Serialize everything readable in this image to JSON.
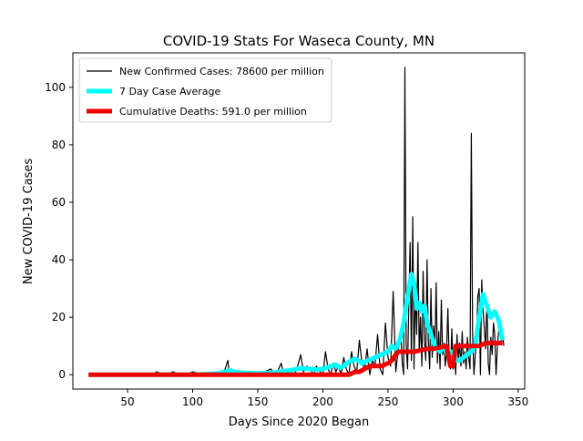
{
  "colors": {
    "cases": "#000000",
    "average": "#00ffff",
    "deaths": "#ee0000",
    "axis": "#000000",
    "background": "#ffffff"
  },
  "chart_data": {
    "type": "line",
    "title": "COVID-19 Stats For Waseca County, MN",
    "xlabel": "Days Since 2020 Began",
    "ylabel": "New COVID-19 Cases",
    "xlim": [
      8,
      355
    ],
    "ylim": [
      -5,
      112
    ],
    "xticks": [
      50,
      100,
      150,
      200,
      250,
      300,
      350
    ],
    "yticks": [
      0,
      20,
      40,
      60,
      80,
      100
    ],
    "grid": false,
    "legend_position": "top-left",
    "series": [
      {
        "name": "New Confirmed Cases: 78600 per million",
        "style": "thin-line",
        "color": "#000000",
        "x": [
          20,
          70,
          72,
          80,
          85,
          90,
          95,
          100,
          110,
          118,
          122,
          125,
          127,
          128,
          130,
          133,
          136,
          140,
          145,
          150,
          155,
          160,
          163,
          165,
          168,
          170,
          172,
          175,
          178,
          180,
          183,
          185,
          188,
          190,
          193,
          195,
          198,
          200,
          202,
          204,
          206,
          208,
          210,
          212,
          214,
          216,
          218,
          220,
          222,
          224,
          226,
          228,
          230,
          232,
          234,
          236,
          238,
          240,
          242,
          244,
          246,
          248,
          250,
          252,
          254,
          256,
          258,
          260,
          261,
          262,
          263,
          264,
          265,
          266,
          267,
          268,
          269,
          270,
          271,
          272,
          273,
          274,
          275,
          276,
          277,
          278,
          279,
          280,
          281,
          282,
          283,
          284,
          285,
          286,
          287,
          288,
          289,
          290,
          291,
          292,
          293,
          294,
          295,
          296,
          297,
          298,
          299,
          300,
          301,
          302,
          303,
          304,
          305,
          306,
          307,
          308,
          309,
          310,
          311,
          312,
          313,
          314,
          315,
          316,
          317,
          318,
          319,
          320,
          321,
          322,
          323,
          324,
          325,
          326,
          327,
          328,
          329,
          330,
          331,
          332,
          333,
          334,
          335,
          336,
          337,
          338,
          339
        ],
        "y": [
          0,
          0,
          1,
          0,
          1,
          0,
          0,
          1,
          0,
          1,
          0,
          2,
          5,
          1,
          2,
          0,
          1,
          0,
          1,
          0,
          1,
          2,
          0,
          1,
          4,
          0,
          2,
          1,
          0,
          2,
          7,
          1,
          3,
          2,
          0,
          3,
          1,
          0,
          8,
          2,
          0,
          4,
          1,
          3,
          0,
          6,
          2,
          0,
          8,
          3,
          1,
          12,
          4,
          2,
          9,
          0,
          5,
          3,
          14,
          2,
          0,
          18,
          6,
          3,
          29,
          1,
          9,
          13,
          4,
          0,
          107,
          10,
          2,
          25,
          46,
          5,
          55,
          2,
          30,
          14,
          46,
          8,
          20,
          3,
          36,
          12,
          5,
          40,
          12,
          2,
          30,
          6,
          17,
          9,
          32,
          4,
          15,
          2,
          26,
          7,
          11,
          3,
          8,
          23,
          5,
          2,
          16,
          2,
          9,
          0,
          14,
          5,
          11,
          3,
          15,
          4,
          8,
          2,
          13,
          6,
          2,
          84,
          14,
          0,
          7,
          11,
          27,
          30,
          0,
          33,
          22,
          16,
          9,
          26,
          4,
          0,
          13,
          7,
          18,
          14,
          0,
          10,
          15,
          19,
          11,
          14,
          10
        ]
      },
      {
        "name": "7 Day Case Average",
        "style": "thick-line",
        "color": "#00ffff",
        "x": [
          20,
          100,
          120,
          125,
          128,
          132,
          136,
          140,
          150,
          160,
          170,
          175,
          180,
          185,
          190,
          195,
          200,
          205,
          210,
          213,
          216,
          220,
          225,
          230,
          235,
          240,
          245,
          250,
          253,
          256,
          259,
          262,
          265,
          268,
          270,
          272,
          274,
          276,
          278,
          280,
          283,
          286,
          290,
          293,
          296,
          299,
          302,
          305,
          308,
          311,
          314,
          317,
          320,
          323,
          326,
          329,
          332,
          335,
          338
        ],
        "y": [
          0,
          0,
          0.5,
          1,
          1.5,
          1,
          0.8,
          0.6,
          0.5,
          0.6,
          1.2,
          1.5,
          2,
          2.2,
          2,
          1.8,
          2,
          2.8,
          3.5,
          2.5,
          3,
          4.5,
          5.5,
          4,
          5,
          6,
          7,
          8,
          10,
          9,
          12,
          18,
          27,
          35,
          32,
          23,
          25,
          22,
          24,
          18,
          14,
          10,
          8,
          10,
          7,
          8,
          5,
          5,
          6,
          7,
          8,
          10,
          20,
          28,
          24,
          20,
          22,
          19,
          12
        ]
      },
      {
        "name": "Cumulative Deaths: 591.0 per million",
        "style": "thick-line",
        "color": "#ee0000",
        "x": [
          20,
          60,
          90,
          100,
          130,
          150,
          170,
          190,
          200,
          210,
          215,
          220,
          225,
          228,
          232,
          236,
          240,
          245,
          250,
          253,
          256,
          258,
          260,
          265,
          270,
          275,
          280,
          285,
          290,
          295,
          298,
          300,
          302,
          304,
          307,
          310,
          315,
          320,
          325,
          330,
          335,
          338
        ],
        "y": [
          0,
          0,
          0,
          0,
          0,
          0,
          0,
          0,
          0,
          0,
          0,
          0,
          1,
          1,
          2,
          3,
          3,
          3,
          4,
          5,
          7,
          8,
          8,
          8,
          8,
          8.5,
          9,
          9,
          9.5,
          10,
          3,
          3,
          10,
          10,
          10,
          10,
          10,
          10,
          11,
          11,
          11,
          11
        ]
      }
    ]
  }
}
